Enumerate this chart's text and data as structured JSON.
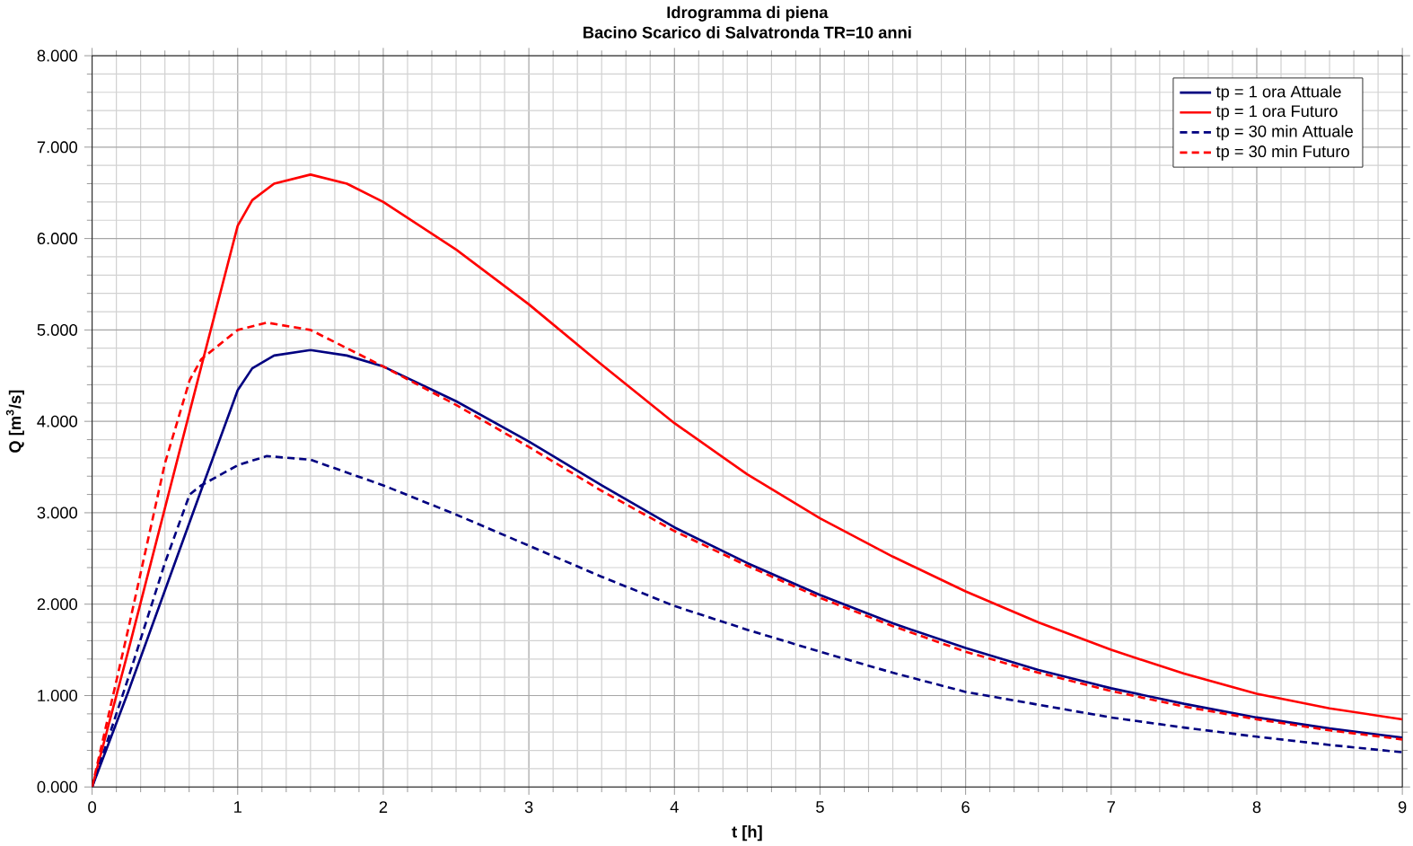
{
  "chart_data": {
    "type": "line",
    "title": "Idrogramma di piena",
    "subtitle": "Bacino Scarico di Salvatronda TR=10 anni",
    "xlabel": "t [h]",
    "ylabel": "Q [m$^{3}$/s]",
    "xlim": [
      0,
      9
    ],
    "ylim": [
      0,
      8
    ],
    "xticks": [
      0,
      1,
      2,
      3,
      4,
      5,
      6,
      7,
      8,
      9
    ],
    "yticks": [
      {
        "value": 0,
        "label": "0.000"
      },
      {
        "value": 1,
        "label": "1.000"
      },
      {
        "value": 2,
        "label": "2.000"
      },
      {
        "value": 3,
        "label": "3.000"
      },
      {
        "value": 4,
        "label": "4.000"
      },
      {
        "value": 5,
        "label": "5.000"
      },
      {
        "value": 6,
        "label": "6.000"
      },
      {
        "value": 7,
        "label": "7.000"
      },
      {
        "value": 8,
        "label": "8.000"
      }
    ],
    "grid": true,
    "legend": "top right",
    "marker": "none",
    "series": [
      {
        "name": "tp = 1 ora Attuale",
        "color": "#000080",
        "line_style": "solid",
        "x": [
          0,
          0.25,
          0.5,
          0.75,
          1,
          1.1,
          1.25,
          1.5,
          1.75,
          2,
          2.5,
          3,
          3.5,
          4,
          4.5,
          5,
          5.5,
          6,
          6.5,
          7,
          7.5,
          8,
          8.5,
          9
        ],
        "values": [
          0,
          1.05,
          2.15,
          3.25,
          4.34,
          4.58,
          4.72,
          4.78,
          4.72,
          4.6,
          4.22,
          3.78,
          3.3,
          2.84,
          2.45,
          2.1,
          1.79,
          1.52,
          1.28,
          1.08,
          0.91,
          0.76,
          0.64,
          0.54
        ]
      },
      {
        "name": "tp = 1 ora Futuro",
        "color": "#ff0000",
        "line_style": "solid",
        "x": [
          0,
          0.25,
          0.5,
          0.75,
          1,
          1.1,
          1.25,
          1.5,
          1.75,
          2,
          2.5,
          3,
          3.5,
          4,
          4.5,
          5,
          5.5,
          6,
          6.5,
          7,
          7.5,
          8,
          8.5,
          9
        ],
        "values": [
          0,
          1.5,
          3.05,
          4.6,
          6.14,
          6.42,
          6.6,
          6.7,
          6.6,
          6.4,
          5.88,
          5.28,
          4.62,
          3.98,
          3.42,
          2.94,
          2.52,
          2.14,
          1.8,
          1.5,
          1.24,
          1.02,
          0.86,
          0.74
        ]
      },
      {
        "name": "tp = 30 min Attuale",
        "color": "#000080",
        "line_style": "dashed",
        "x": [
          0,
          0.25,
          0.5,
          0.67,
          0.75,
          1,
          1.2,
          1.5,
          2,
          2.5,
          3,
          3.5,
          4,
          4.5,
          5,
          5.5,
          6,
          6.5,
          7,
          7.5,
          8,
          8.5,
          9
        ],
        "values": [
          0,
          1.2,
          2.45,
          3.2,
          3.3,
          3.52,
          3.62,
          3.58,
          3.3,
          2.98,
          2.64,
          2.3,
          1.98,
          1.72,
          1.48,
          1.25,
          1.04,
          0.9,
          0.76,
          0.65,
          0.55,
          0.46,
          0.38
        ]
      },
      {
        "name": "tp = 30 min Futuro",
        "color": "#ff0000",
        "line_style": "dashed",
        "x": [
          0,
          0.25,
          0.5,
          0.67,
          0.75,
          1,
          1.2,
          1.5,
          2,
          2.5,
          3,
          3.5,
          4,
          4.5,
          5,
          5.5,
          6,
          6.5,
          7,
          7.5,
          8,
          8.5,
          9
        ],
        "values": [
          0,
          1.74,
          3.54,
          4.45,
          4.68,
          5.0,
          5.08,
          5.0,
          4.6,
          4.18,
          3.72,
          3.24,
          2.8,
          2.42,
          2.07,
          1.76,
          1.48,
          1.25,
          1.05,
          0.88,
          0.74,
          0.62,
          0.52
        ]
      }
    ]
  }
}
